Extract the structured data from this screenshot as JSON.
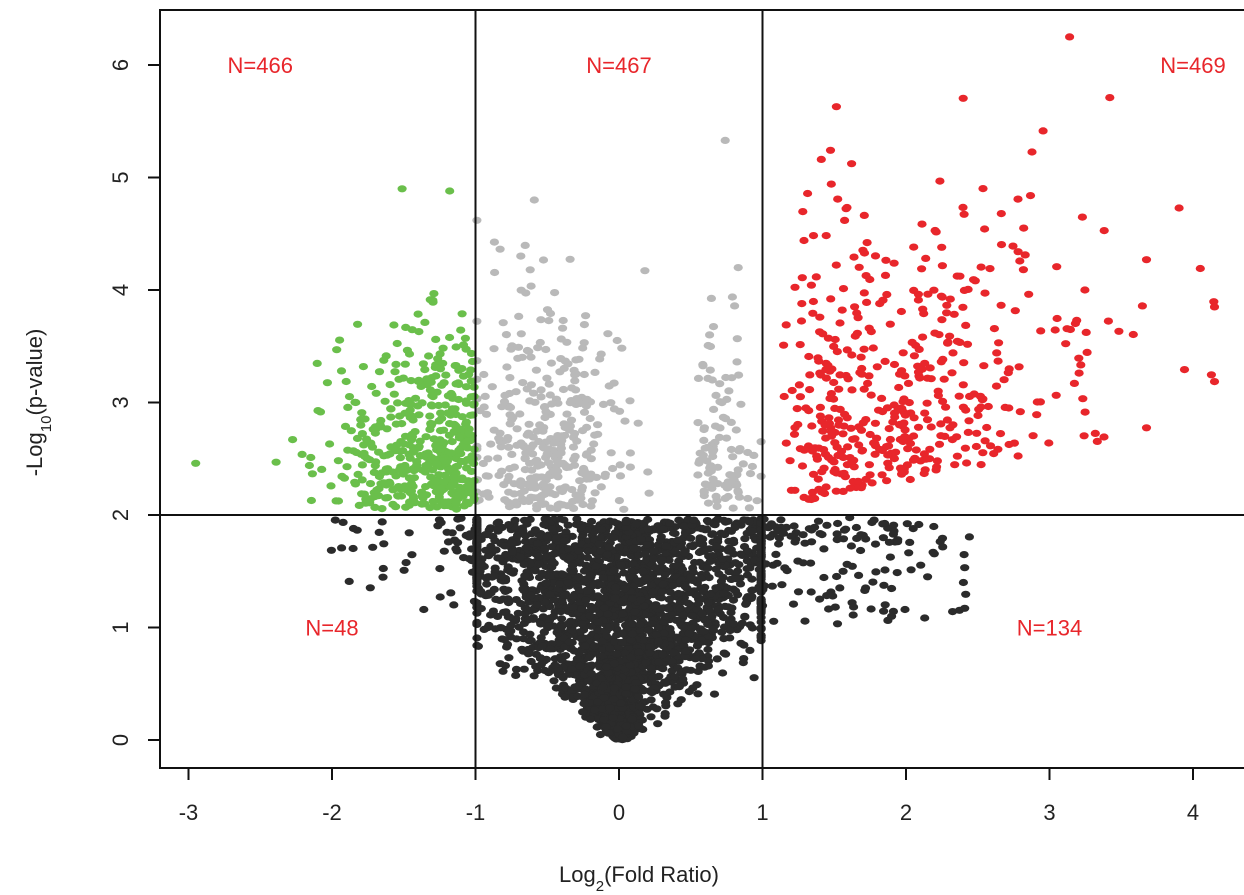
{
  "chart_data": {
    "type": "scatter",
    "title": "",
    "xlabel": {
      "prefix": "Log",
      "sub": "2",
      "suffix": "(Fold Ratio)"
    },
    "ylabel": {
      "prefix": "-Log",
      "sub": "10",
      "suffix": "(p-value)"
    },
    "xlim": [
      -3.2,
      4.4
    ],
    "ylim": [
      -0.3,
      6.6
    ],
    "xticks": [
      "-3",
      "-2",
      "-1",
      "0",
      "1",
      "2",
      "3",
      "4"
    ],
    "yticks": [
      "0",
      "1",
      "2",
      "3",
      "4",
      "5",
      "6"
    ],
    "thresholds": {
      "x": [
        -1,
        1
      ],
      "y": 2
    },
    "region_counts": [
      {
        "label": "N=466",
        "x": -2.5,
        "y": 6.0
      },
      {
        "label": "N=467",
        "x": 0.0,
        "y": 6.0
      },
      {
        "label": "N=469",
        "x": 4.0,
        "y": 6.0
      },
      {
        "label": "N=48",
        "x": -2.0,
        "y": 1.0
      },
      {
        "label": "N=134",
        "x": 3.0,
        "y": 1.0
      }
    ],
    "series": [
      {
        "key": "down",
        "color": "#6abf4b",
        "count": 466,
        "x_range": [
          -2.95,
          -1.0
        ],
        "y_range": [
          2.0,
          4.9
        ]
      },
      {
        "key": "ns_sig",
        "color": "#b9b9b9",
        "count": 467,
        "x_range": [
          -1.0,
          1.0
        ],
        "y_range": [
          2.0,
          5.35
        ]
      },
      {
        "key": "up",
        "color": "#e8262b",
        "count": 469,
        "x_range": [
          1.0,
          4.15
        ],
        "y_range": [
          2.0,
          6.25
        ]
      },
      {
        "key": "low_left",
        "color": "#2b2b2b",
        "count": 48,
        "x_range": [
          -2.1,
          -1.0
        ],
        "y_range": [
          1.0,
          2.0
        ]
      },
      {
        "key": "low_right",
        "color": "#2b2b2b",
        "count": 134,
        "x_range": [
          1.0,
          2.45
        ],
        "y_range": [
          0.9,
          2.0
        ]
      },
      {
        "key": "background",
        "color": "#2b2b2b",
        "count": 2600,
        "x_range": [
          -1.0,
          1.0
        ],
        "y_range": [
          0.0,
          2.0
        ]
      }
    ],
    "legend": "none",
    "grid": false
  },
  "colors": {
    "count_text": "#e8262b",
    "axis": "#222222"
  }
}
